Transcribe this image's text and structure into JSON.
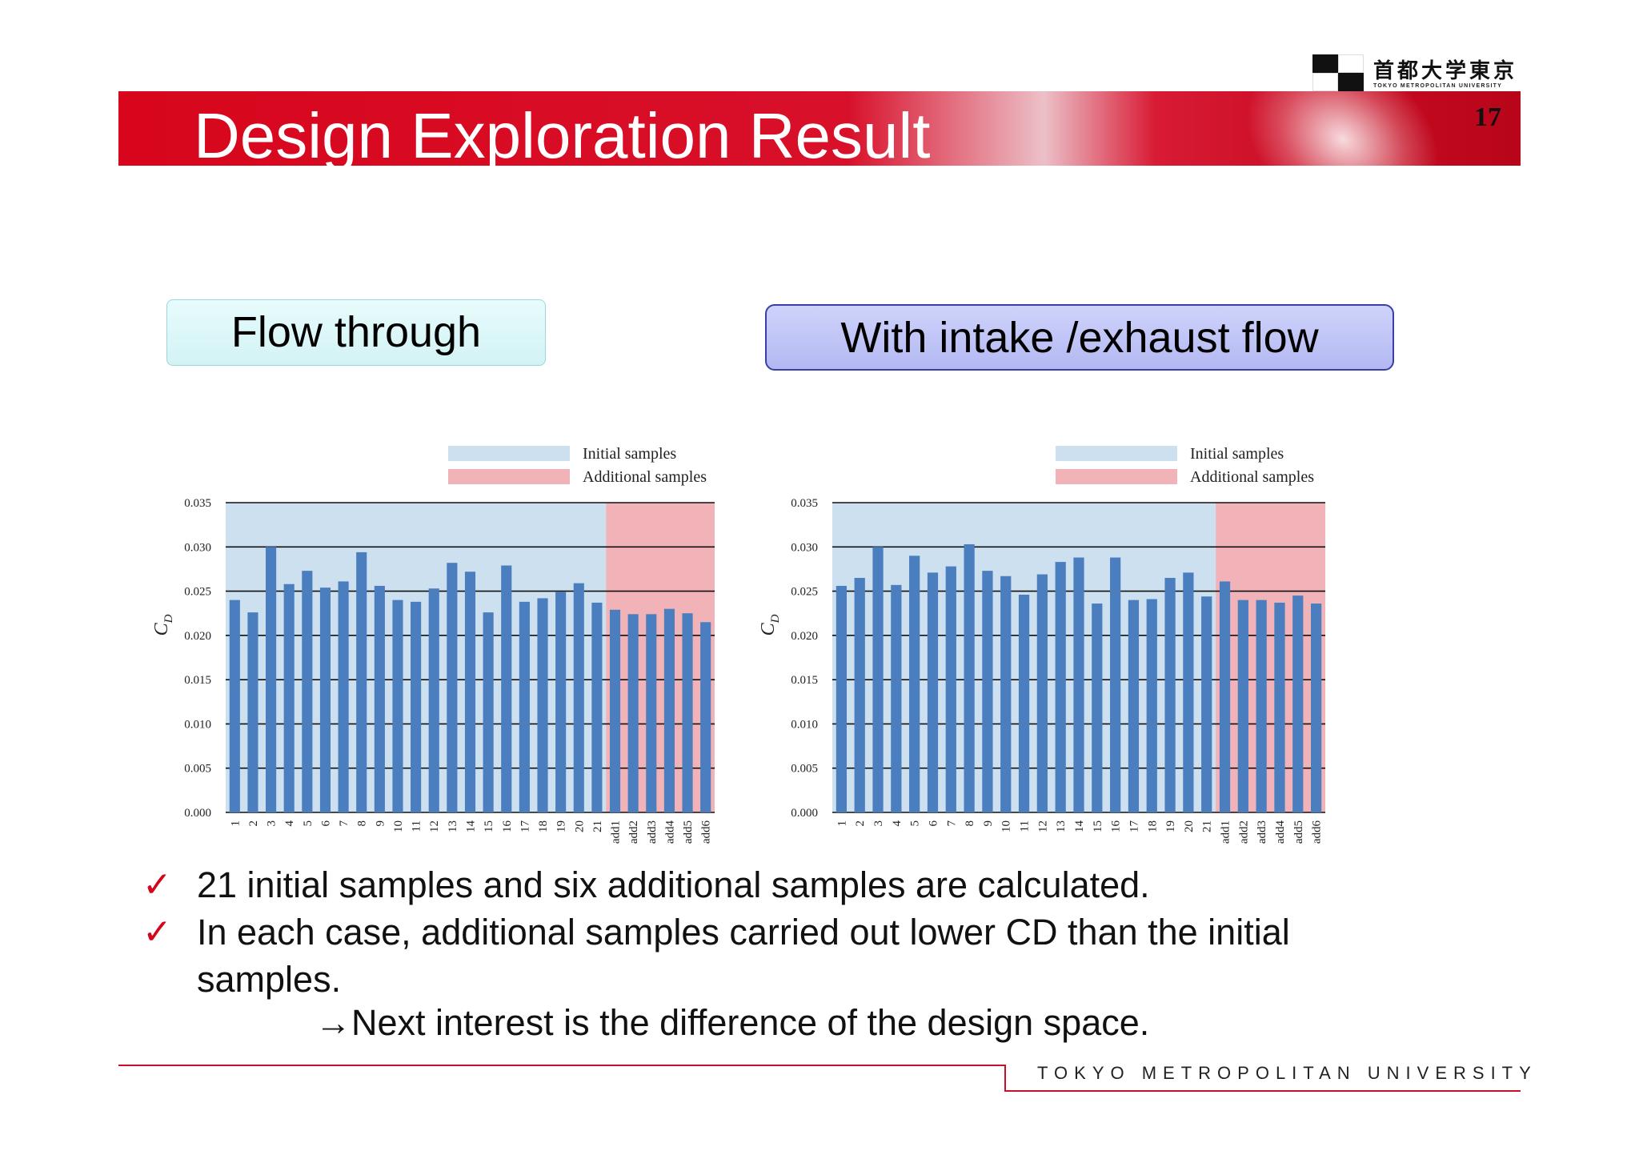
{
  "slide": {
    "title": "Design Exploration Result",
    "number": "17"
  },
  "logo": {
    "japanese": "首都大学東京",
    "english": "TOKYO METROPOLITAN UNIVERSITY"
  },
  "boxes": {
    "left": "Flow through",
    "right": "With intake /exhaust flow"
  },
  "bullets": [
    "21 initial samples and six additional samples are calculated.",
    "In each case, additional samples carried out lower CD than the initial samples."
  ],
  "bullet_marker": "✓",
  "next_line": "→Next interest is the difference of the design space.",
  "footer": "TOKYO METROPOLITAN UNIVERSITY",
  "colors": {
    "banner_red": "#d7061c",
    "bar_blue": "#4a7ebf",
    "initial_region": "#cde0f0",
    "additional_region": "#f2b3b8",
    "check_red": "#d4061a"
  },
  "chart_data": [
    {
      "type": "bar",
      "ylabel": "CD",
      "ylim": [
        0.0,
        0.035
      ],
      "yticks": [
        "0.000",
        "0.005",
        "0.010",
        "0.015",
        "0.020",
        "0.025",
        "0.030",
        "0.035"
      ],
      "legend": [
        "Initial samples",
        "Additional samples"
      ],
      "legend_position": "top-right",
      "grid": true,
      "categories": [
        "1",
        "2",
        "3",
        "4",
        "5",
        "6",
        "7",
        "8",
        "9",
        "10",
        "11",
        "12",
        "13",
        "14",
        "15",
        "16",
        "17",
        "18",
        "19",
        "20",
        "21",
        "add1",
        "add2",
        "add3",
        "add4",
        "add5",
        "add6"
      ],
      "regions": [
        {
          "name": "Initial samples",
          "from": "1",
          "to": "21"
        },
        {
          "name": "Additional samples",
          "from": "add1",
          "to": "add6"
        }
      ],
      "values": [
        0.024,
        0.0226,
        0.03,
        0.0258,
        0.0273,
        0.0254,
        0.0261,
        0.0294,
        0.0256,
        0.024,
        0.0238,
        0.0253,
        0.0282,
        0.0272,
        0.0226,
        0.0279,
        0.0238,
        0.0242,
        0.0249,
        0.0259,
        0.0237,
        0.0229,
        0.0224,
        0.0224,
        0.023,
        0.0225,
        0.0215
      ]
    },
    {
      "type": "bar",
      "ylabel": "CD",
      "ylim": [
        0.0,
        0.035
      ],
      "yticks": [
        "0.000",
        "0.005",
        "0.010",
        "0.015",
        "0.020",
        "0.025",
        "0.030",
        "0.035"
      ],
      "legend": [
        "Initial samples",
        "Additional samples"
      ],
      "legend_position": "top-right",
      "grid": true,
      "categories": [
        "1",
        "2",
        "3",
        "4",
        "5",
        "6",
        "7",
        "8",
        "9",
        "10",
        "11",
        "12",
        "13",
        "14",
        "15",
        "16",
        "17",
        "18",
        "19",
        "20",
        "21",
        "add1",
        "add2",
        "add3",
        "add4",
        "add5",
        "add6"
      ],
      "regions": [
        {
          "name": "Initial samples",
          "from": "1",
          "to": "21"
        },
        {
          "name": "Additional samples",
          "from": "add1",
          "to": "add6"
        }
      ],
      "values": [
        0.0256,
        0.0265,
        0.03,
        0.0257,
        0.029,
        0.0271,
        0.0278,
        0.0303,
        0.0273,
        0.0267,
        0.0246,
        0.0269,
        0.0283,
        0.0288,
        0.0236,
        0.0288,
        0.024,
        0.0241,
        0.0265,
        0.0271,
        0.0244,
        0.0261,
        0.024,
        0.024,
        0.0237,
        0.0245,
        0.0236
      ]
    }
  ]
}
